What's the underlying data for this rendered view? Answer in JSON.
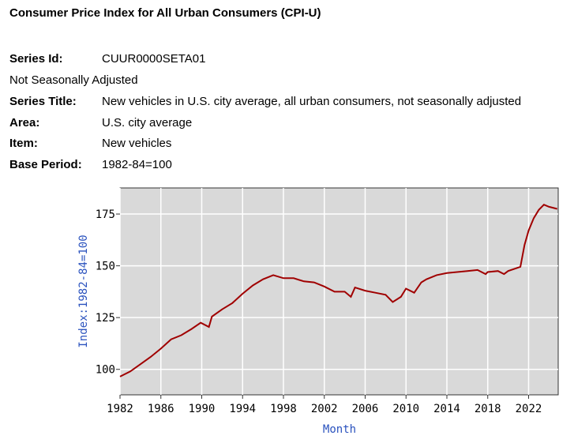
{
  "title": "Consumer Price Index for All Urban Consumers (CPI-U)",
  "meta": {
    "series_id_label": "Series Id:",
    "series_id": "CUUR0000SETA01",
    "adjustment": "Not Seasonally Adjusted",
    "series_title_label": "Series Title:",
    "series_title": "New vehicles in U.S. city average, all urban consumers, not seasonally adjusted",
    "area_label": "Area:",
    "area": "U.S. city average",
    "item_label": "Item:",
    "item": "New vehicles",
    "base_label": "Base Period:",
    "base": "1982-84=100"
  },
  "chart_data": {
    "type": "line",
    "xlabel": "Month",
    "ylabel": "Index:1982-84=100",
    "xlim": [
      1982,
      2024.9
    ],
    "ylim": [
      87.7,
      187.6
    ],
    "xticks": [
      "1982",
      "1986",
      "1990",
      "1994",
      "1998",
      "2002",
      "2006",
      "2010",
      "2014",
      "2018",
      "2022"
    ],
    "yticks": [
      "100",
      "125",
      "150",
      "175"
    ],
    "line_color": "#a00000",
    "series": [
      {
        "name": "New vehicles",
        "x": [
          1982,
          1983,
          1984,
          1985,
          1986,
          1987,
          1988,
          1989,
          1989.9,
          1990.7,
          1991,
          1992,
          1993,
          1994,
          1995,
          1996,
          1997,
          1998,
          1999,
          2000,
          2001,
          2002,
          2003,
          2004,
          2004.6,
          2005,
          2006,
          2007,
          2008,
          2008.7,
          2009.5,
          2010,
          2010.8,
          2011.5,
          2012,
          2013,
          2014,
          2015,
          2016,
          2017,
          2017.8,
          2018,
          2019,
          2019.6,
          2020,
          2020.9,
          2021.2,
          2021.6,
          2022,
          2022.5,
          2023,
          2023.5,
          2024,
          2024.8
        ],
        "y": [
          96.5,
          99,
          102.5,
          106,
          110,
          114.5,
          116.5,
          119.5,
          122.5,
          120.5,
          125.5,
          129,
          132,
          136.5,
          140.5,
          143.5,
          145.5,
          144,
          144,
          142.5,
          142,
          140,
          137.5,
          137.5,
          135,
          139.5,
          138,
          137,
          136,
          132.5,
          135,
          139,
          137,
          142,
          143.5,
          145.5,
          146.5,
          147,
          147.5,
          148,
          146,
          147,
          147.5,
          146,
          147.5,
          149,
          149.5,
          160,
          167,
          173,
          177,
          179.5,
          178.5,
          177.5
        ]
      }
    ]
  }
}
